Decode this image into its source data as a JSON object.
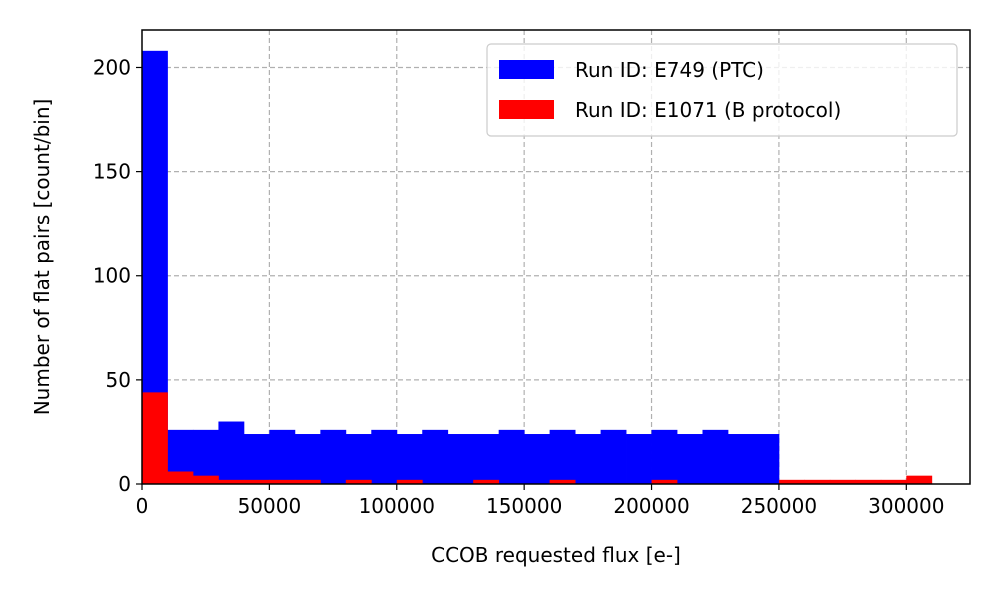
{
  "chart_data": {
    "type": "bar",
    "subtype": "histogram",
    "xlabel": "CCOB requested flux [e-]",
    "ylabel": "Number of flat pairs [count/bin]",
    "xlim": [
      0,
      325000
    ],
    "ylim": [
      0,
      218
    ],
    "xticks": [
      0,
      50000,
      100000,
      150000,
      200000,
      250000,
      300000
    ],
    "xtick_labels": [
      "0",
      "50000",
      "100000",
      "150000",
      "200000",
      "250000",
      "300000"
    ],
    "yticks": [
      0,
      50,
      100,
      150,
      200
    ],
    "ytick_labels": [
      "0",
      "50",
      "100",
      "150",
      "200"
    ],
    "grid": true,
    "legend_position": "top-right",
    "series": [
      {
        "name": "Run ID: E749 (PTC)",
        "color": "#0000ff",
        "bin_edges": [
          0,
          10000,
          20000,
          30000,
          40000,
          50000,
          60000,
          70000,
          80000,
          90000,
          100000,
          110000,
          120000,
          130000,
          140000,
          150000,
          160000,
          170000,
          180000,
          190000,
          200000,
          210000,
          220000,
          230000,
          240000,
          250000
        ],
        "counts": [
          208,
          26,
          26,
          30,
          24,
          26,
          24,
          26,
          24,
          26,
          24,
          26,
          24,
          24,
          26,
          24,
          26,
          24,
          26,
          24,
          26,
          24,
          26,
          24,
          24
        ]
      },
      {
        "name": "Run ID: E1071 (B protocol)",
        "color": "#ff0000",
        "bin_edges": [
          0,
          10000,
          20000,
          30000,
          40000,
          50000,
          60000,
          70000,
          80000,
          90000,
          100000,
          110000,
          120000,
          130000,
          140000,
          150000,
          160000,
          170000,
          180000,
          190000,
          200000,
          210000,
          220000,
          230000,
          240000,
          250000,
          260000,
          270000,
          280000,
          290000,
          300000,
          310000
        ],
        "counts": [
          44,
          6,
          4,
          2,
          2,
          2,
          2,
          0,
          2,
          0,
          2,
          0,
          0,
          2,
          0,
          0,
          2,
          0,
          0,
          0,
          2,
          0,
          0,
          0,
          0,
          2,
          2,
          2,
          2,
          2,
          4
        ]
      }
    ]
  }
}
